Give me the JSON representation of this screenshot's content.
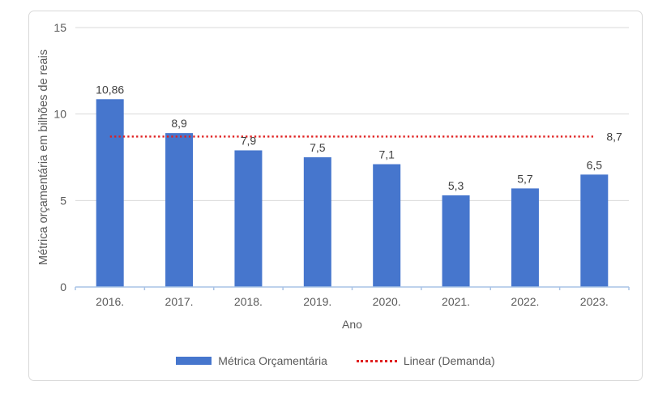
{
  "chart_data": {
    "type": "bar",
    "title": "",
    "categories": [
      "2016.",
      "2017.",
      "2018.",
      "2019.",
      "2020.",
      "2021.",
      "2022.",
      "2023."
    ],
    "series": [
      {
        "name": "Métrica Orçamentária",
        "type": "bar",
        "color": "#4676cd",
        "values": [
          10.86,
          8.9,
          7.9,
          7.5,
          7.1,
          5.3,
          5.7,
          6.5
        ],
        "labels": [
          "10,86",
          "8,9",
          "7,9",
          "7,5",
          "7,1",
          "5,3",
          "5,7",
          "6,5"
        ]
      },
      {
        "name": "Linear (Demanda)",
        "type": "trendline",
        "style": "dotted",
        "color": "#e02020",
        "value": 8.7,
        "label": "8,7"
      }
    ],
    "xlabel": "Ano",
    "ylabel": "Métrica orçamentária em bilhões de reais",
    "ylim": [
      0,
      15
    ],
    "yticks": [
      0,
      5,
      10,
      15
    ],
    "ytick_labels": [
      "0",
      "5",
      "10",
      "15"
    ],
    "grid": true,
    "legend_position": "bottom"
  },
  "colors": {
    "bar": "#4676cd",
    "trendline": "#e02020",
    "gridline": "#d9d9d9",
    "axis_line": "#a9c3e6",
    "tick_text": "#595959",
    "data_label_text": "#3f3f3f",
    "frame_border": "#d9d9d9"
  }
}
